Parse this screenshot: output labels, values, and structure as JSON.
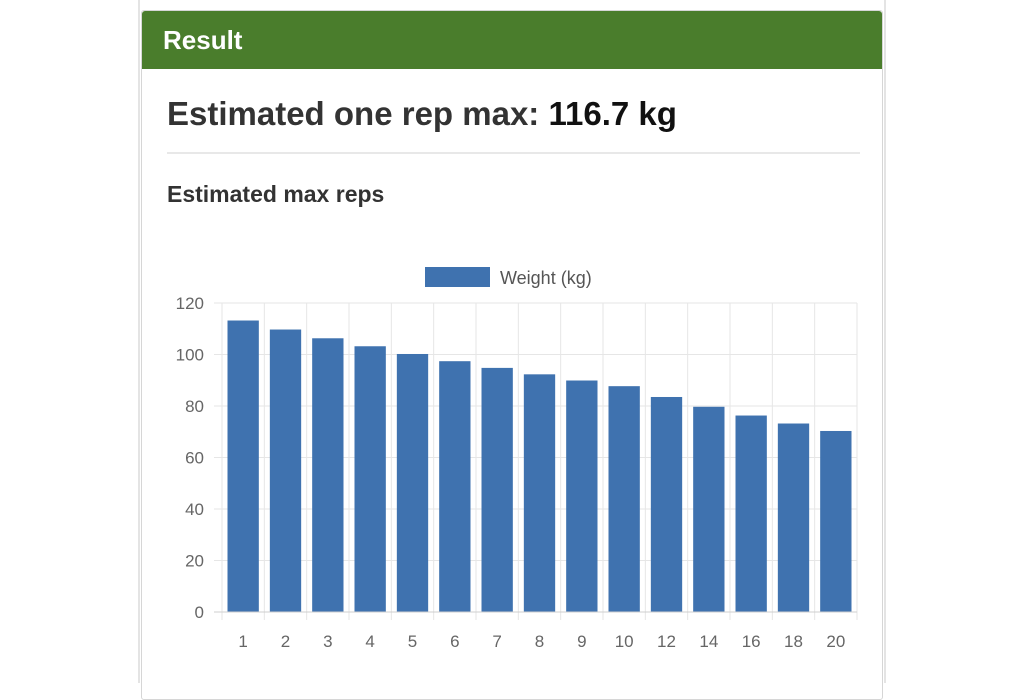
{
  "card": {
    "header_title": "Result",
    "result_label": "Estimated one rep max:",
    "result_value": "116.7 kg",
    "section_heading": "Estimated max reps"
  },
  "colors": {
    "header_bg": "#4a7d2c",
    "bar": "#3f72af",
    "grid": "#e6e6e6"
  },
  "chart_data": {
    "type": "bar",
    "title": "",
    "xlabel": "",
    "ylabel": "",
    "categories": [
      "1",
      "2",
      "3",
      "4",
      "5",
      "6",
      "7",
      "8",
      "9",
      "10",
      "12",
      "14",
      "16",
      "18",
      "20"
    ],
    "series": [
      {
        "name": "Weight (kg)",
        "values": [
          113.2,
          109.7,
          106.3,
          103.2,
          100.2,
          97.4,
          94.8,
          92.3,
          89.9,
          87.7,
          83.5,
          79.7,
          76.3,
          73.2,
          70.3
        ]
      }
    ],
    "ylim": [
      0,
      120
    ],
    "yticks": [
      0,
      20,
      40,
      60,
      80,
      100,
      120
    ],
    "grid": true,
    "legend_position": "top-center"
  }
}
